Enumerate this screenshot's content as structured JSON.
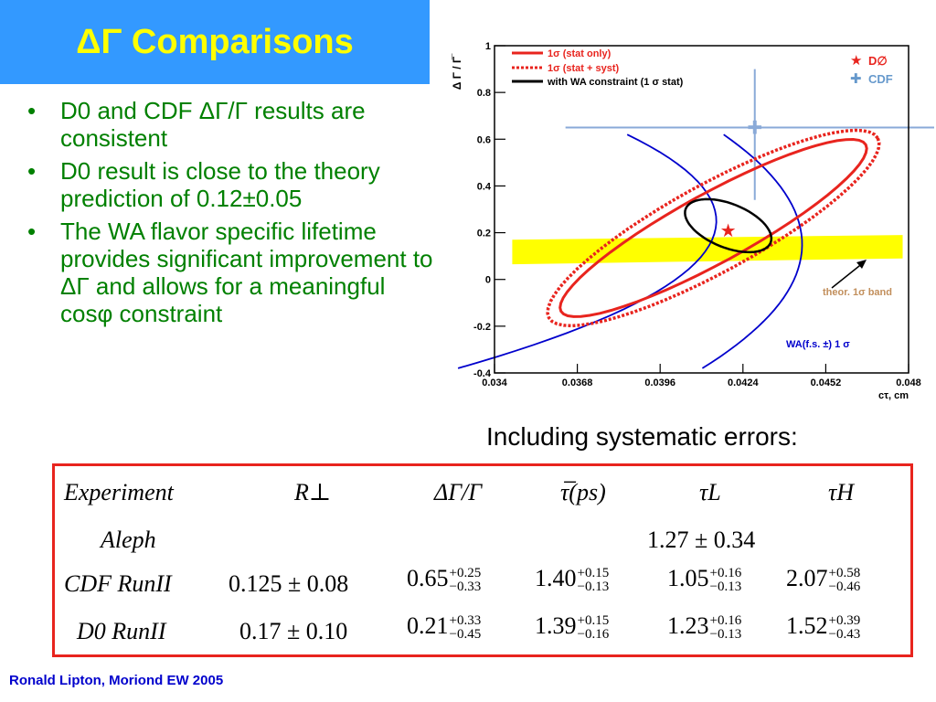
{
  "title": "ΔΓ Comparisons",
  "bullets": [
    "D0 and CDF ΔΓ/Γ results are consistent",
    "D0 result is close to the theory prediction of 0.12±0.05",
    "The WA flavor specific lifetime provides significant improvement to ΔΓ and allows for a meaningful cosφ constraint"
  ],
  "chart_data": {
    "type": "line",
    "ylabel": "Δ Γ / Γ̅",
    "xlabel": "cτ, cm",
    "xlim": [
      0.034,
      0.048
    ],
    "ylim": [
      -0.4,
      1.0
    ],
    "x_ticks": [
      "0.034",
      "0.0368",
      "0.0396",
      "0.0424",
      "0.0452",
      "0.048"
    ],
    "y_ticks": [
      "-0.4",
      "-0.2",
      "0",
      "0.2",
      "0.4",
      "0.6",
      "0.8",
      "1"
    ],
    "legend": [
      {
        "label": "1σ (stat only)",
        "color": "#e8241e",
        "style": "solid"
      },
      {
        "label": "1σ (stat + syst)",
        "color": "#e8241e",
        "style": "dotted"
      },
      {
        "label": "with WA constraint (1 σ stat)",
        "color": "#000000",
        "style": "solid"
      }
    ],
    "markers_legend": [
      {
        "label": "D∅",
        "color": "#e8241e",
        "symbol": "★"
      },
      {
        "label": "CDF",
        "color": "#6699cc",
        "symbol": "✚"
      }
    ],
    "d0_point": {
      "x": 0.0419,
      "y": 0.21
    },
    "cdf_point": {
      "x": 0.0428,
      "y": 0.65,
      "xerr": [
        0.0364,
        0.0489
      ],
      "yerr": [
        0.34,
        0.9
      ]
    },
    "theory_band": {
      "y_low": 0.07,
      "y_high": 0.17,
      "label": "theor. 1σ band"
    },
    "wa_label": "WA(f.s. ±) 1 σ",
    "wa_color": "#0000cc",
    "band_color": "#ffff00",
    "band_label_color": "#c28f5c"
  },
  "including": "Including systematic errors:",
  "table": {
    "headers": [
      "Experiment",
      "R⊥",
      "ΔΓ/Γ",
      "τ̅(ps)",
      "τL",
      "τH"
    ],
    "rows": [
      {
        "exp": "Aleph",
        "r": "",
        "dg": "",
        "tau": "",
        "tl": "1.27 ± 0.34",
        "th": ""
      },
      {
        "exp": "CDF  RunII",
        "r": "0.125 ± 0.08",
        "dg": {
          "v": "0.65",
          "up": "+0.25",
          "dn": "−0.33"
        },
        "tau": {
          "v": "1.40",
          "up": "+0.15",
          "dn": "−0.13"
        },
        "tl": {
          "v": "1.05",
          "up": "+0.16",
          "dn": "−0.13"
        },
        "th": {
          "v": "2.07",
          "up": "+0.58",
          "dn": "−0.46"
        }
      },
      {
        "exp": "D0 RunII",
        "r": "0.17 ± 0.10",
        "dg": {
          "v": "0.21",
          "up": "+0.33",
          "dn": "−0.45"
        },
        "tau": {
          "v": "1.39",
          "up": "+0.15",
          "dn": "−0.16"
        },
        "tl": {
          "v": "1.23",
          "up": "+0.16",
          "dn": "−0.13"
        },
        "th": {
          "v": "1.52",
          "up": "+0.39",
          "dn": "−0.43"
        }
      }
    ]
  },
  "footer": "Ronald Lipton, Moriond EW 2005",
  "colors": {
    "title_bg": "#3399ff",
    "title_fg": "#ffff00",
    "bullet_fg": "#008000",
    "table_border": "#e8241e"
  }
}
